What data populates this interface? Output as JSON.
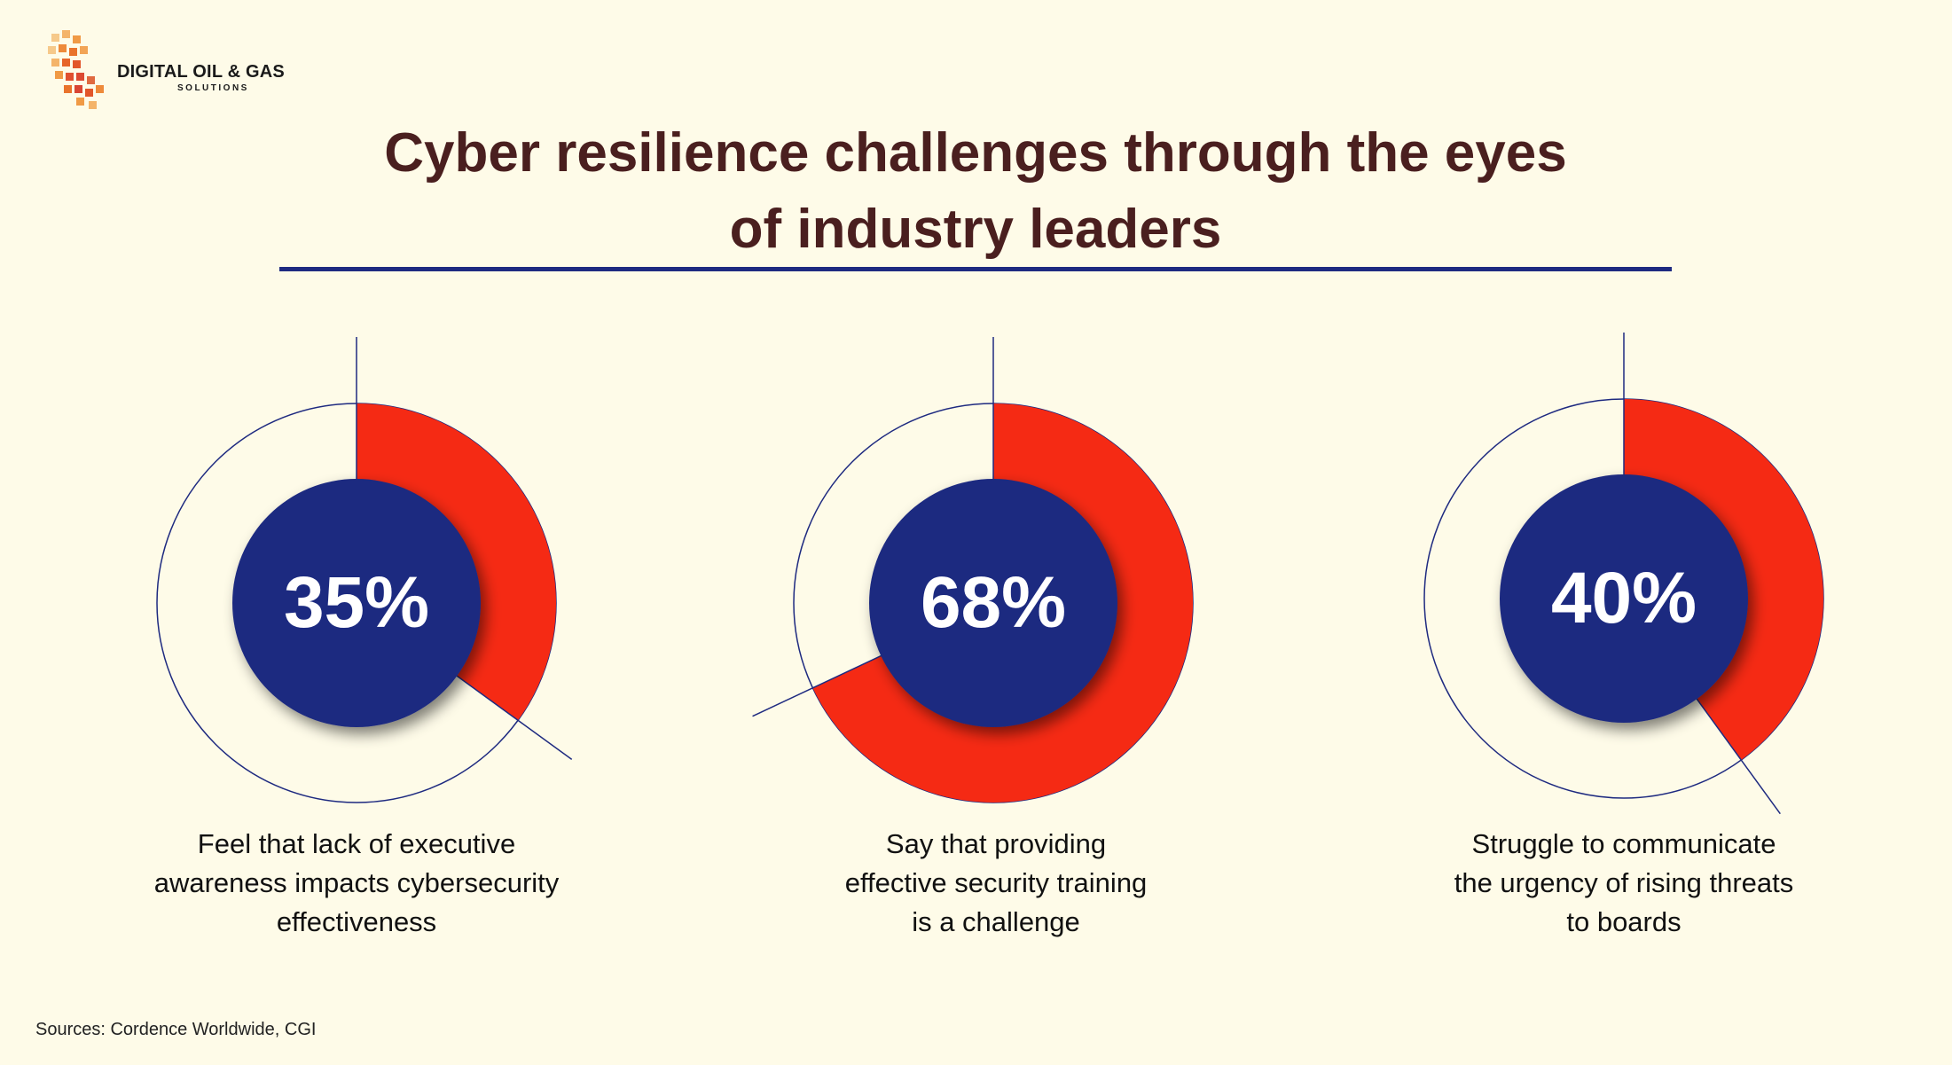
{
  "logo": {
    "line1": "DIGITAL OIL & GAS",
    "line2": "SOLUTIONS"
  },
  "title": {
    "line1": "Cyber resilience challenges through the eyes",
    "line2": "of industry leaders"
  },
  "colors": {
    "background": "#fefbe8",
    "accent_red": "#f52a14",
    "navy": "#1e2a80",
    "title_brown": "#4a1f1f"
  },
  "chart_data": {
    "type": "pie",
    "charts": [
      {
        "value_label": "35%",
        "value": 35,
        "caption_lines": [
          "Feel that lack of executive",
          "awareness impacts cybersecurity",
          "effectiveness"
        ]
      },
      {
        "value_label": "68%",
        "value": 68,
        "caption_lines": [
          "Say that providing",
          "effective security training",
          "is a challenge"
        ]
      },
      {
        "value_label": "40%",
        "value": 40,
        "caption_lines": [
          "Struggle to communicate",
          "the urgency of rising threats",
          "to boards"
        ]
      }
    ]
  },
  "source": "Sources: Cordence Worldwide, CGI"
}
